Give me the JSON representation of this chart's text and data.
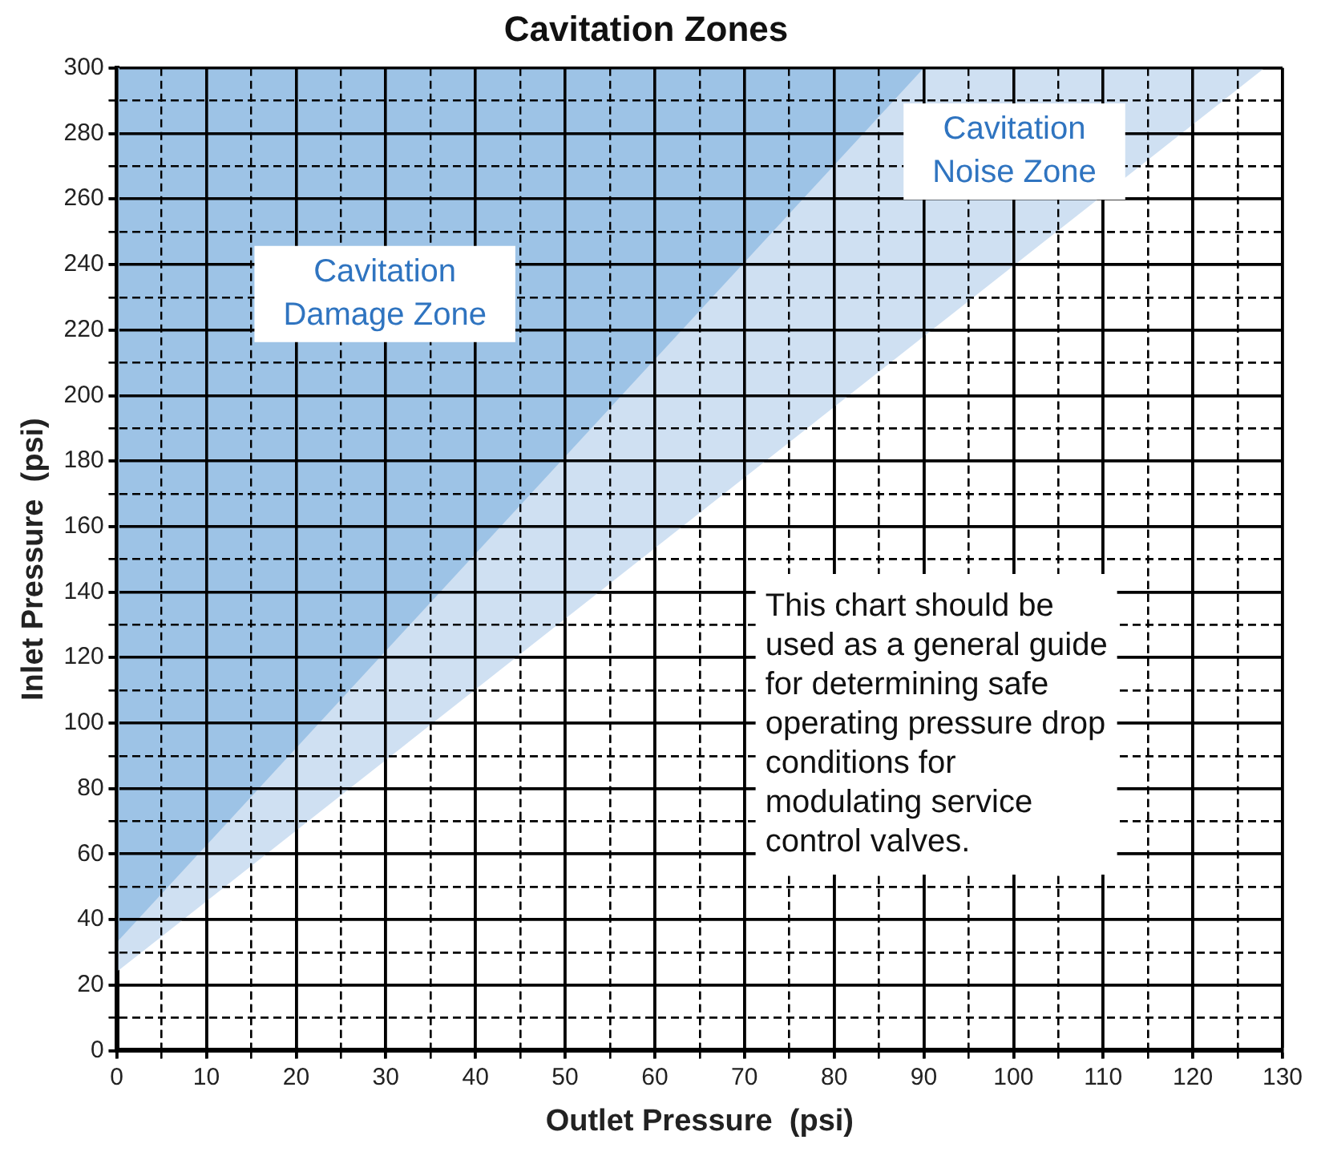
{
  "chart_data": {
    "type": "area",
    "title": "Cavitation Zones",
    "xlabel": "Outlet Pressure  (psi)",
    "ylabel": "Inlet Pressure  (psi)",
    "series": [
      {
        "type": "area",
        "color": "#9dc3e6",
        "x": [
          0,
          90
        ],
        "values": [
          33,
          300
        ]
      },
      {
        "type": "area",
        "color": "#cfe0f2",
        "x": [
          0,
          128
        ],
        "values": [
          24,
          300
        ]
      }
    ],
    "xlim": [
      0,
      130
    ],
    "ylim": [
      0,
      300
    ],
    "xticks": [
      0,
      {
        "value": 5,
        "label": null
      },
      10,
      {
        "value": 15,
        "label": null
      },
      20,
      {
        "value": 25,
        "label": null
      },
      30,
      {
        "value": 35,
        "label": null
      },
      40,
      {
        "value": 45,
        "label": null
      },
      50,
      {
        "value": 55,
        "label": null
      },
      60,
      {
        "value": 65,
        "label": null
      },
      70,
      {
        "value": 75,
        "label": null
      },
      80,
      {
        "value": 85,
        "label": null
      },
      90,
      {
        "value": 95,
        "label": null
      },
      100,
      {
        "value": 105,
        "label": null
      },
      110,
      {
        "value": 115,
        "label": null
      },
      120,
      {
        "value": 125,
        "label": null
      },
      130
    ],
    "yticks": [
      0,
      {
        "value": 10,
        "label": null
      },
      20,
      {
        "value": 30,
        "label": null
      },
      40,
      {
        "value": 50,
        "label": null
      },
      60,
      {
        "value": 70,
        "label": null
      },
      80,
      {
        "value": 90,
        "label": null
      },
      100,
      {
        "value": 110,
        "label": null
      },
      120,
      {
        "value": 130,
        "label": null
      },
      140,
      {
        "value": 150,
        "label": null
      },
      160,
      {
        "value": 170,
        "label": null
      },
      180,
      {
        "value": 190,
        "label": null
      },
      200,
      {
        "value": 210,
        "label": null
      },
      220,
      {
        "value": 230,
        "label": null
      },
      240,
      {
        "value": 250,
        "label": null
      },
      260,
      {
        "value": 270,
        "label": null
      },
      280,
      {
        "value": 290,
        "label": null
      },
      300
    ],
    "grid": true,
    "legend": false,
    "marker": "none",
    "annotations": [
      "Cavitation\nDamage Zone",
      "Cavitation\nNoise Zone",
      "This chart should be\nused as a general guide\nfor determining safe\noperating pressure drop\nconditions for\nmodulating service\ncontrol valves."
    ]
  }
}
